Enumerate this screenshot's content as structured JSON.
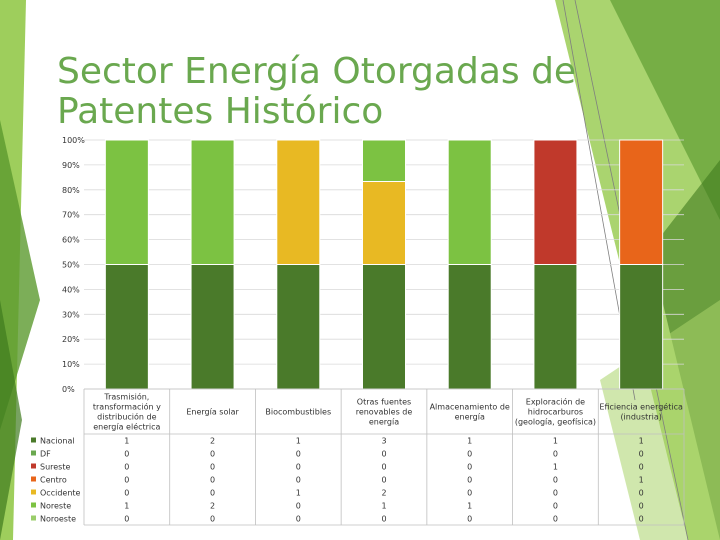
{
  "slide": {
    "title_line1": "Sector Energía Otorgadas de",
    "title_line2": "Patentes Histórico",
    "accent_colors": [
      "#8dc63f",
      "#5b9a2e",
      "#3f7a1e",
      "#a9d46a"
    ]
  },
  "chart_data": {
    "type": "bar",
    "stacked": "percent",
    "title": "Sector Energía Otorgadas de Patentes Histórico",
    "y_tick_labels": [
      "0%",
      "10%",
      "20%",
      "30%",
      "40%",
      "50%",
      "60%",
      "70%",
      "80%",
      "90%",
      "100%"
    ],
    "ylim": [
      0,
      100
    ],
    "categories": [
      "Trasmisión, transformación y distribución de energía eléctrica",
      "Energía solar",
      "Biocombustibles",
      "Otras fuentes renovables de energía",
      "Almacenamiento de energía",
      "Exploración de hidrocarburos (geología, geofísica)",
      "Eficiencia energética (industria)"
    ],
    "category_label_lines": [
      [
        "Trasmisión,",
        "transformación y",
        "distribución de",
        "energía eléctrica"
      ],
      [
        "Energía solar"
      ],
      [
        "Biocombustibles"
      ],
      [
        "Otras fuentes",
        "renovables de",
        "energía"
      ],
      [
        "Almacenamiento de",
        "energía"
      ],
      [
        "Exploración de",
        "hidrocarburos",
        "(geología, geofísica)"
      ],
      [
        "Eficiencia energética",
        "(industria)"
      ]
    ],
    "series": [
      {
        "name": "Nacional",
        "color": "#4a7a2a",
        "values": [
          1,
          2,
          1,
          3,
          1,
          1,
          1
        ]
      },
      {
        "name": "DF",
        "color": "#6aa84f",
        "values": [
          0,
          0,
          0,
          0,
          0,
          0,
          0
        ]
      },
      {
        "name": "Sureste",
        "color": "#c0392b",
        "values": [
          0,
          0,
          0,
          0,
          0,
          1,
          0
        ]
      },
      {
        "name": "Centro",
        "color": "#e8651a",
        "values": [
          0,
          0,
          0,
          0,
          0,
          0,
          1
        ]
      },
      {
        "name": "Occidente",
        "color": "#e8b923",
        "values": [
          0,
          0,
          1,
          2,
          0,
          0,
          0
        ]
      },
      {
        "name": "Noreste",
        "color": "#7cc242",
        "values": [
          1,
          2,
          0,
          1,
          1,
          0,
          0
        ]
      },
      {
        "name": "Noroeste",
        "color": "#9acd6a",
        "values": [
          0,
          0,
          0,
          0,
          0,
          0,
          0
        ]
      }
    ]
  }
}
